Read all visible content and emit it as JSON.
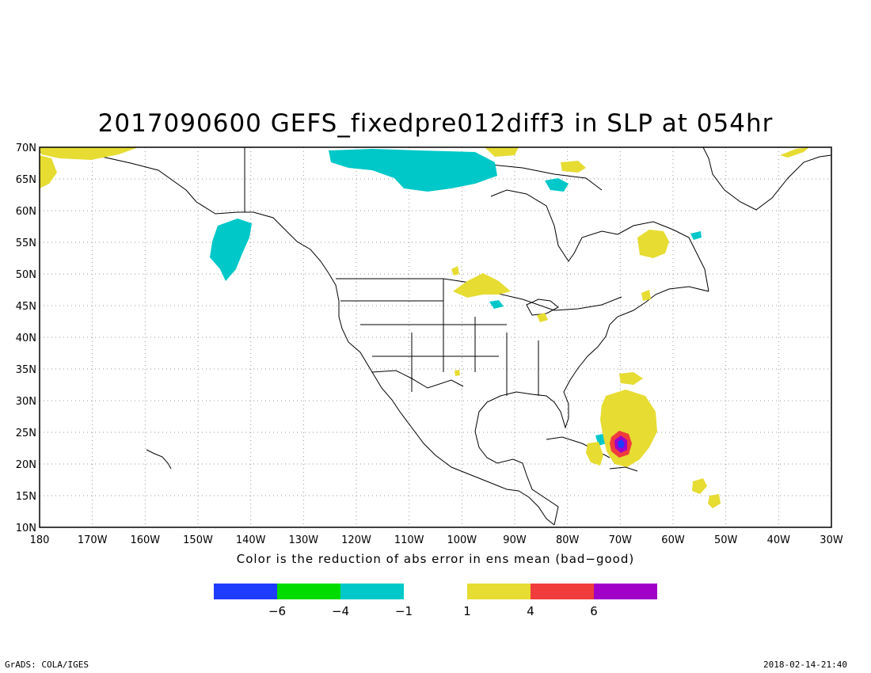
{
  "title": "2017090600 GEFS_fixedpre012diff3 in SLP at 054hr",
  "subtitle": "Color is the reduction of abs error in ens mean (bad−good)",
  "footer": {
    "left": "GrADS: COLA/IGES",
    "right": "2018-02-14-21:40"
  },
  "map": {
    "projection": "lat-lon",
    "lon_range": [
      -180,
      -30
    ],
    "lat_range": [
      10,
      70
    ],
    "lat_labels": [
      "10N",
      "15N",
      "20N",
      "25N",
      "30N",
      "35N",
      "40N",
      "45N",
      "50N",
      "55N",
      "60N",
      "65N",
      "70N"
    ],
    "lon_labels": [
      "180",
      "170W",
      "160W",
      "150W",
      "140W",
      "130W",
      "120W",
      "110W",
      "100W",
      "90W",
      "80W",
      "70W",
      "60W",
      "50W",
      "40W",
      "30W"
    ],
    "grid": "dotted"
  },
  "colorbar": {
    "colors": [
      "#1e3cff",
      "#00dc00",
      "#00c8c8",
      "#ffffff",
      "#e6dc32",
      "#f03c3c",
      "#a000c8"
    ],
    "tick_labels": [
      "−6",
      "−4",
      "−1",
      "1",
      "4",
      "6"
    ]
  }
}
